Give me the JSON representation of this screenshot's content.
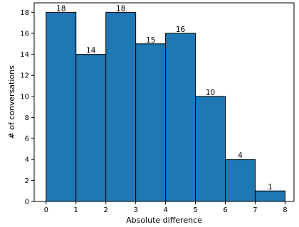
{
  "chart_data": {
    "type": "bar",
    "subtype": "histogram",
    "bin_edges": [
      0,
      1,
      2,
      3,
      4,
      5,
      6,
      7,
      8
    ],
    "values": [
      18,
      14,
      18,
      15,
      16,
      10,
      4,
      1
    ],
    "data_labels": [
      "18",
      "14",
      "18",
      "15",
      "16",
      "10",
      "4",
      "1"
    ],
    "xlabel": "Absolute difference",
    "ylabel": "# of conversations",
    "xlim": [
      -0.4,
      8.3
    ],
    "ylim": [
      0,
      18.9
    ],
    "x_ticks": [
      0,
      1,
      2,
      3,
      4,
      5,
      6,
      7,
      8
    ],
    "y_ticks": [
      0,
      2,
      4,
      6,
      8,
      10,
      12,
      14,
      16,
      18
    ],
    "grid": false,
    "legend": "none",
    "bar_color": "#1f77b4",
    "edge_color": "#000000"
  }
}
